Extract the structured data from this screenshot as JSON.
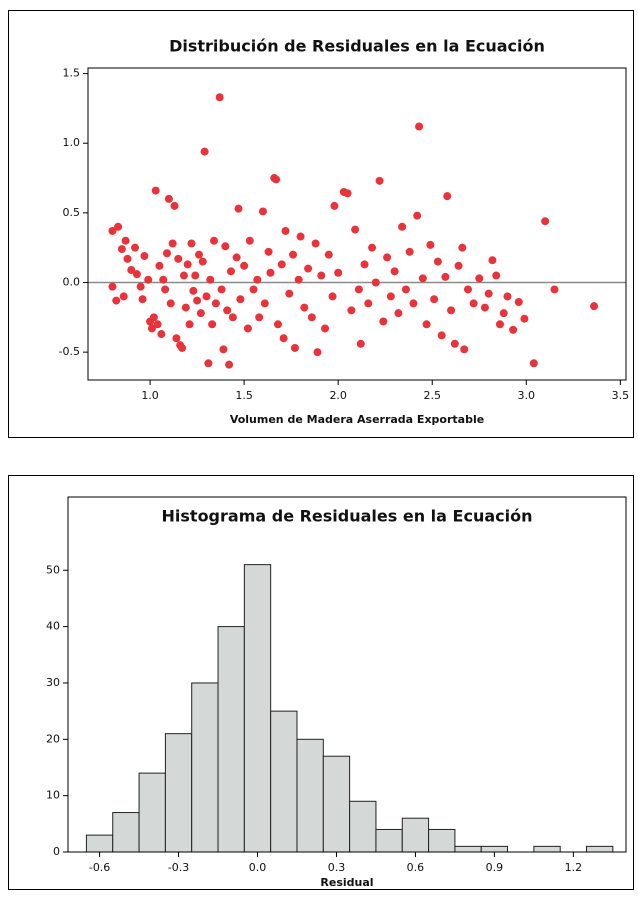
{
  "chart_data": [
    {
      "type": "scatter",
      "title": "Distribución de Residuales en la Ecuación",
      "x_label": "Volumen de Madera Aserrada Exportable",
      "color": "#e8333b",
      "reference_line": 0,
      "x": [
        0.8,
        0.83,
        0.8,
        0.82,
        0.85,
        0.87,
        0.88,
        0.86,
        0.9,
        0.92,
        0.93,
        0.95,
        0.97,
        0.96,
        0.99,
        1.0,
        1.01,
        1.02,
        1.03,
        1.04,
        1.05,
        1.06,
        1.07,
        1.08,
        1.09,
        1.1,
        1.11,
        1.12,
        1.13,
        1.14,
        1.15,
        1.16,
        1.17,
        1.18,
        1.19,
        1.2,
        1.21,
        1.22,
        1.23,
        1.24,
        1.25,
        1.26,
        1.27,
        1.28,
        1.29,
        1.3,
        1.31,
        1.32,
        1.33,
        1.34,
        1.35,
        1.37,
        1.38,
        1.39,
        1.4,
        1.41,
        1.42,
        1.43,
        1.44,
        1.46,
        1.47,
        1.48,
        1.5,
        1.52,
        1.53,
        1.55,
        1.57,
        1.58,
        1.6,
        1.61,
        1.63,
        1.64,
        1.66,
        1.67,
        1.68,
        1.7,
        1.71,
        1.72,
        1.74,
        1.76,
        1.77,
        1.79,
        1.8,
        1.82,
        1.84,
        1.86,
        1.88,
        1.89,
        1.91,
        1.93,
        1.95,
        1.97,
        1.98,
        2.0,
        2.03,
        2.05,
        2.07,
        2.09,
        2.11,
        2.12,
        2.14,
        2.16,
        2.18,
        2.2,
        2.22,
        2.24,
        2.26,
        2.28,
        2.3,
        2.32,
        2.34,
        2.36,
        2.38,
        2.4,
        2.42,
        2.43,
        2.45,
        2.47,
        2.49,
        2.51,
        2.53,
        2.55,
        2.57,
        2.58,
        2.6,
        2.62,
        2.64,
        2.66,
        2.67,
        2.69,
        2.72,
        2.75,
        2.78,
        2.8,
        2.82,
        2.84,
        2.86,
        2.88,
        2.9,
        2.93,
        2.96,
        2.99,
        3.04,
        3.1,
        3.15,
        3.36
      ],
      "y": [
        0.37,
        0.4,
        -0.03,
        -0.13,
        0.24,
        0.3,
        0.17,
        -0.1,
        0.09,
        0.25,
        0.06,
        -0.03,
        0.19,
        -0.12,
        0.02,
        -0.28,
        -0.33,
        -0.25,
        0.66,
        -0.3,
        0.12,
        -0.37,
        0.02,
        -0.05,
        0.21,
        0.6,
        -0.15,
        0.28,
        0.55,
        -0.4,
        0.17,
        -0.45,
        -0.47,
        0.05,
        -0.18,
        0.13,
        -0.3,
        0.28,
        -0.06,
        0.05,
        -0.13,
        0.2,
        -0.22,
        0.15,
        0.94,
        -0.1,
        -0.58,
        0.02,
        -0.3,
        0.3,
        -0.15,
        1.33,
        -0.05,
        -0.48,
        0.26,
        -0.2,
        -0.59,
        0.08,
        -0.25,
        0.18,
        0.53,
        -0.12,
        0.12,
        -0.33,
        0.3,
        -0.05,
        0.02,
        -0.25,
        0.51,
        -0.15,
        0.22,
        0.07,
        0.75,
        0.74,
        -0.3,
        0.13,
        -0.4,
        0.37,
        -0.08,
        0.2,
        -0.47,
        0.02,
        0.33,
        -0.18,
        0.1,
        -0.25,
        0.28,
        -0.5,
        0.05,
        -0.33,
        0.2,
        -0.1,
        0.55,
        0.07,
        0.65,
        0.64,
        -0.2,
        0.38,
        -0.05,
        -0.44,
        0.13,
        -0.15,
        0.25,
        0.0,
        0.73,
        -0.28,
        0.18,
        -0.1,
        0.08,
        -0.22,
        0.4,
        -0.05,
        0.22,
        -0.15,
        0.48,
        1.12,
        0.03,
        -0.3,
        0.27,
        -0.12,
        0.15,
        -0.38,
        0.04,
        0.62,
        -0.2,
        -0.44,
        0.12,
        0.25,
        -0.48,
        -0.05,
        -0.15,
        0.03,
        -0.18,
        -0.08,
        0.16,
        0.05,
        -0.3,
        -0.22,
        -0.1,
        -0.34,
        -0.14,
        -0.26,
        -0.58,
        0.44,
        -0.05,
        -0.17
      ],
      "xlim": [
        0.67,
        3.53
      ],
      "xticks": [
        {
          "value": 1,
          "label": "1.0"
        },
        1.5,
        {
          "value": 2,
          "label": "2.0"
        },
        2.5,
        {
          "value": 3,
          "label": "3.0"
        },
        3.5
      ],
      "ylim": [
        -0.7,
        1.54
      ],
      "yticks": [
        -0.5,
        {
          "value": 0,
          "label": "0.0"
        },
        0.5,
        {
          "value": 1,
          "label": "1.0"
        },
        1.5
      ]
    },
    {
      "type": "histogram",
      "title": "Histograma de Residuales en la Ecuación",
      "x_label": "Residual",
      "color": "#d4d8d7",
      "bins": [
        -0.65,
        -0.55,
        -0.45,
        -0.35,
        -0.25,
        -0.15,
        -0.05,
        0.05,
        0.15,
        0.25,
        0.35,
        0.45,
        0.55,
        0.65,
        0.75,
        0.85,
        0.95,
        1.05,
        1.15,
        1.25,
        1.35
      ],
      "counts": [
        3,
        7,
        14,
        21,
        30,
        40,
        51,
        25,
        20,
        17,
        9,
        4,
        6,
        4,
        1,
        1,
        0,
        1,
        0,
        1
      ],
      "xlim": [
        -0.72,
        1.4
      ],
      "xticks": [
        -0.6,
        -0.3,
        {
          "value": 0,
          "label": "0.0"
        },
        0.3,
        0.6,
        0.9,
        1.2
      ],
      "ylim": [
        0,
        63
      ],
      "yticks": [
        0,
        10,
        20,
        30,
        40,
        50
      ]
    }
  ]
}
